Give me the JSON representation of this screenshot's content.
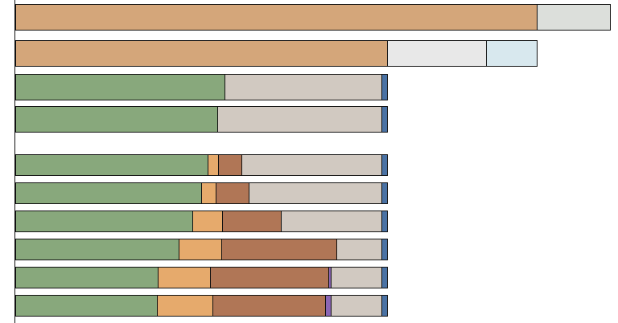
{
  "chart_data": {
    "type": "stacked-bar-horizontal",
    "categories": [
      null,
      null,
      null,
      null,
      null,
      null,
      null,
      null,
      null,
      null
    ],
    "xlim": [
      0,
      740
    ],
    "series": [
      {
        "color": "#d4a67a",
        "values": [
          648,
          462,
          null,
          null,
          null,
          null,
          null,
          null,
          null,
          null
        ]
      },
      {
        "color": "#88a87c",
        "values": [
          null,
          null,
          260,
          251,
          239,
          231,
          220,
          203,
          177,
          176
        ]
      },
      {
        "color": "#e6aa6c",
        "values": [
          null,
          null,
          null,
          null,
          13,
          18,
          37,
          53,
          65,
          69
        ]
      },
      {
        "color": "#b07656",
        "values": [
          null,
          null,
          null,
          null,
          29,
          41,
          73,
          143,
          147,
          140
        ]
      },
      {
        "color": "#8a66b4",
        "values": [
          null,
          null,
          null,
          null,
          null,
          null,
          null,
          null,
          3,
          7
        ]
      },
      {
        "color": "#d1c9c1",
        "values": [
          null,
          null,
          195,
          204,
          174,
          165,
          125,
          56,
          63,
          63
        ]
      },
      {
        "color": "#dcdfdb",
        "values": [
          91,
          null,
          null,
          null,
          null,
          null,
          null,
          null,
          null,
          null
        ]
      },
      {
        "color": "#e8e8e8",
        "values": [
          null,
          123,
          null,
          null,
          null,
          null,
          null,
          null,
          null,
          null
        ]
      },
      {
        "color": "#d8e8ee",
        "values": [
          null,
          63,
          null,
          null,
          null,
          null,
          null,
          null,
          null,
          null
        ]
      },
      {
        "color": "#4a72a4",
        "values": [
          null,
          null,
          7,
          7,
          7,
          7,
          7,
          7,
          7,
          7
        ]
      }
    ]
  }
}
